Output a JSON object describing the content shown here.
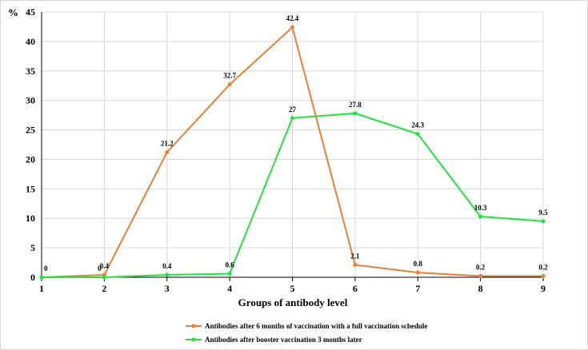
{
  "chart_data": {
    "type": "line",
    "title": "",
    "xlabel": "Groups of antibody level",
    "ylabel": "%",
    "x": [
      1,
      2,
      3,
      4,
      5,
      6,
      7,
      8,
      9
    ],
    "ylim": [
      0,
      45
    ],
    "yticks": [
      0,
      5,
      10,
      15,
      20,
      25,
      30,
      35,
      40,
      45
    ],
    "grid": true,
    "legend_position": "bottom",
    "series": [
      {
        "name": "Antibodies after 6 months of vaccination with a full vaccination schedule",
        "color": "#ED7D31",
        "values": [
          0,
          0.4,
          21.2,
          32.7,
          42.4,
          2.1,
          0.8,
          0.2,
          0.2
        ],
        "labels": [
          "0",
          "0.4",
          "21.2",
          "32.7",
          "42.4",
          "2.1",
          "0.8",
          "0.2",
          "0.2"
        ]
      },
      {
        "name": "Antibodies after booster vaccination 3 months later",
        "color": "#22E33A",
        "values": [
          0,
          0,
          0.4,
          0.6,
          27,
          27.8,
          24.3,
          10.3,
          9.5
        ],
        "labels": [
          "",
          "0",
          "0.4",
          "0.6",
          "27",
          "27.8",
          "24.3",
          "10.3",
          "9.5"
        ]
      }
    ]
  }
}
